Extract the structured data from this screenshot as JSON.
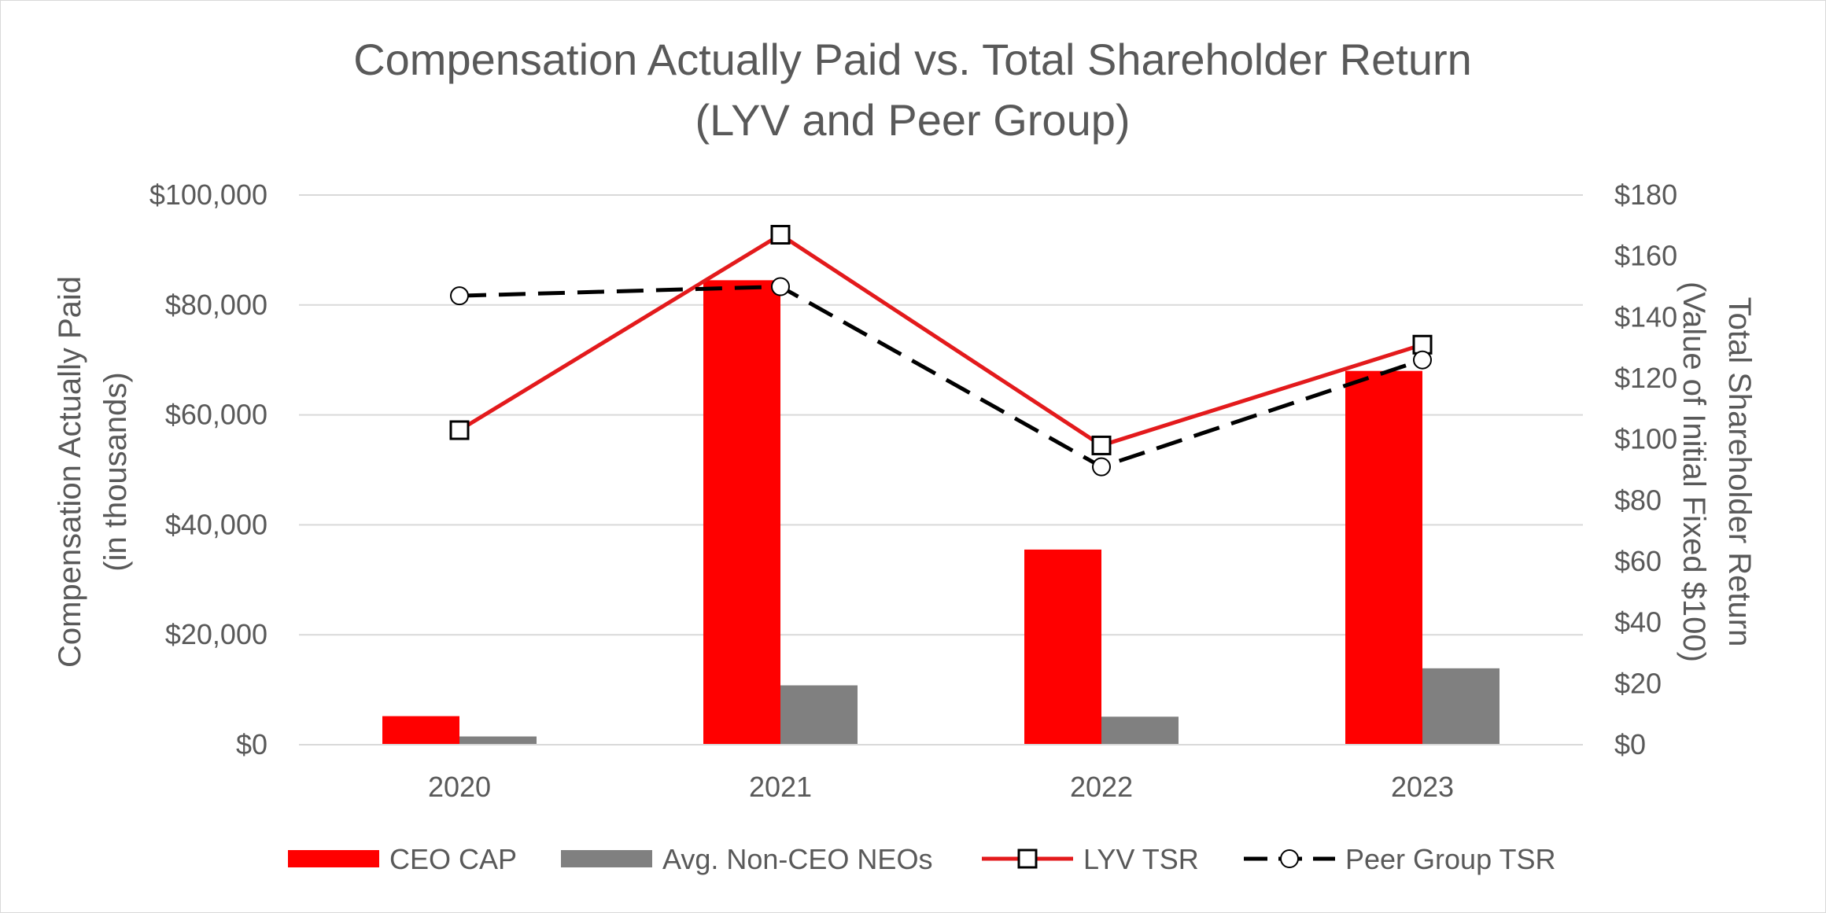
{
  "chart_data": {
    "type": "bar",
    "title": "Compensation Actually Paid vs. Total Shareholder Return",
    "subtitle": "(LYV and Peer Group)",
    "categories": [
      "2020",
      "2021",
      "2022",
      "2023"
    ],
    "y_left": {
      "label": "Compensation Actually Paid",
      "label_line2": "(in thousands)",
      "ylim": [
        0,
        100000
      ],
      "ticks": [
        0,
        20000,
        40000,
        60000,
        80000,
        100000
      ],
      "tick_labels": [
        "$0",
        "$20,000",
        "$40,000",
        "$60,000",
        "$80,000",
        "$100,000"
      ]
    },
    "y_right": {
      "label": "Total Shareholder Return",
      "label_line2": "(Value of Initial Fixed $100)",
      "ylim": [
        0,
        180
      ],
      "ticks": [
        0,
        20,
        40,
        60,
        80,
        100,
        120,
        140,
        160,
        180
      ],
      "tick_labels": [
        "$0",
        "$20",
        "$40",
        "$60",
        "$80",
        "$100",
        "$120",
        "$140",
        "$160",
        "$180"
      ]
    },
    "grid": true,
    "legend_position": "bottom",
    "series": [
      {
        "name": "CEO CAP",
        "kind": "bar",
        "axis": "left",
        "color": "#ff0000",
        "values": [
          5200,
          84500,
          35500,
          68000
        ]
      },
      {
        "name": "Avg. Non-CEO NEOs",
        "kind": "bar",
        "axis": "left",
        "color": "#808080",
        "values": [
          1500,
          10800,
          5100,
          13900
        ]
      },
      {
        "name": "LYV TSR",
        "kind": "line",
        "axis": "right",
        "color": "#e31a1c",
        "marker": "square",
        "dash": "solid",
        "values": [
          103,
          167,
          98,
          131
        ]
      },
      {
        "name": "Peer Group TSR",
        "kind": "line",
        "axis": "right",
        "color": "#000000",
        "marker": "circle",
        "dash": "dashed",
        "values": [
          147,
          150,
          91,
          126
        ]
      }
    ]
  }
}
